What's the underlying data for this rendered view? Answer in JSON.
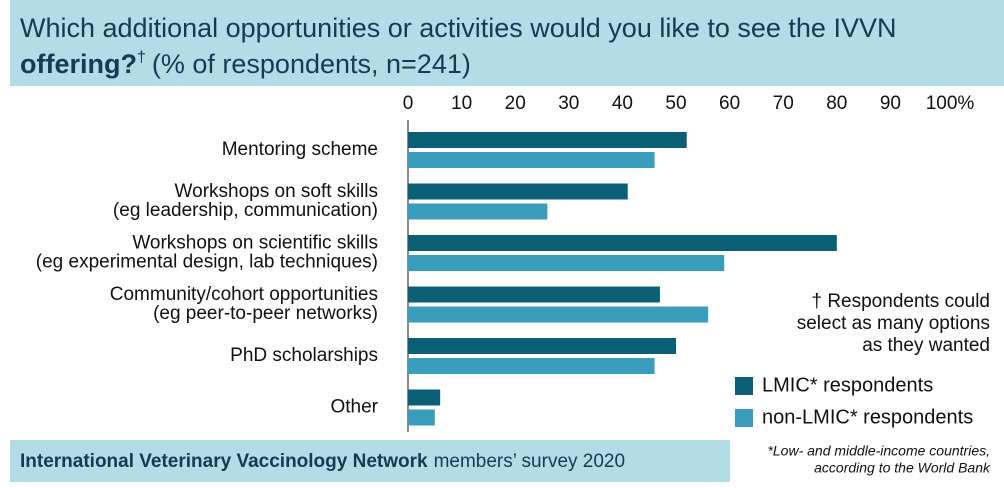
{
  "chart_data": {
    "type": "hbar",
    "title": [
      "Which additional opportunities or activities would you like to see the IVVN",
      "offering?"
    ],
    "title_mark": "†",
    "subtitle": "(% of respondents, n=241)",
    "categories": [
      [
        "Mentoring scheme"
      ],
      [
        "Workshops on soft skills",
        "(eg leadership, communication)"
      ],
      [
        "Workshops on scientific skills",
        "(eg experimental design, lab techniques)"
      ],
      [
        "Community/cohort opportunities",
        "(eg peer-to-peer networks)"
      ],
      [
        "PhD scholarships"
      ],
      [
        "Other"
      ]
    ],
    "series": [
      {
        "name": "LMIC* respondents",
        "color": "#0b5f75",
        "values": [
          52,
          41,
          80,
          47,
          50,
          6
        ]
      },
      {
        "name": "non-LMIC* respondents",
        "color": "#3a9dbb",
        "values": [
          46,
          26,
          59,
          56,
          46,
          5
        ]
      }
    ],
    "xlim": [
      0,
      100
    ],
    "xticks": [
      0,
      10,
      20,
      30,
      40,
      50,
      60,
      70,
      80,
      90,
      {
        "value": 100,
        "label": "100%"
      }
    ],
    "annotation": [
      "† Respondents could",
      "select as many options",
      "as they wanted"
    ],
    "source": {
      "bold": "International Veterinary Vaccinology Network",
      "rest": "members’ survey 2020"
    },
    "footnote": [
      "*Low- and middle-income countries,",
      "according to the World Bank"
    ]
  }
}
